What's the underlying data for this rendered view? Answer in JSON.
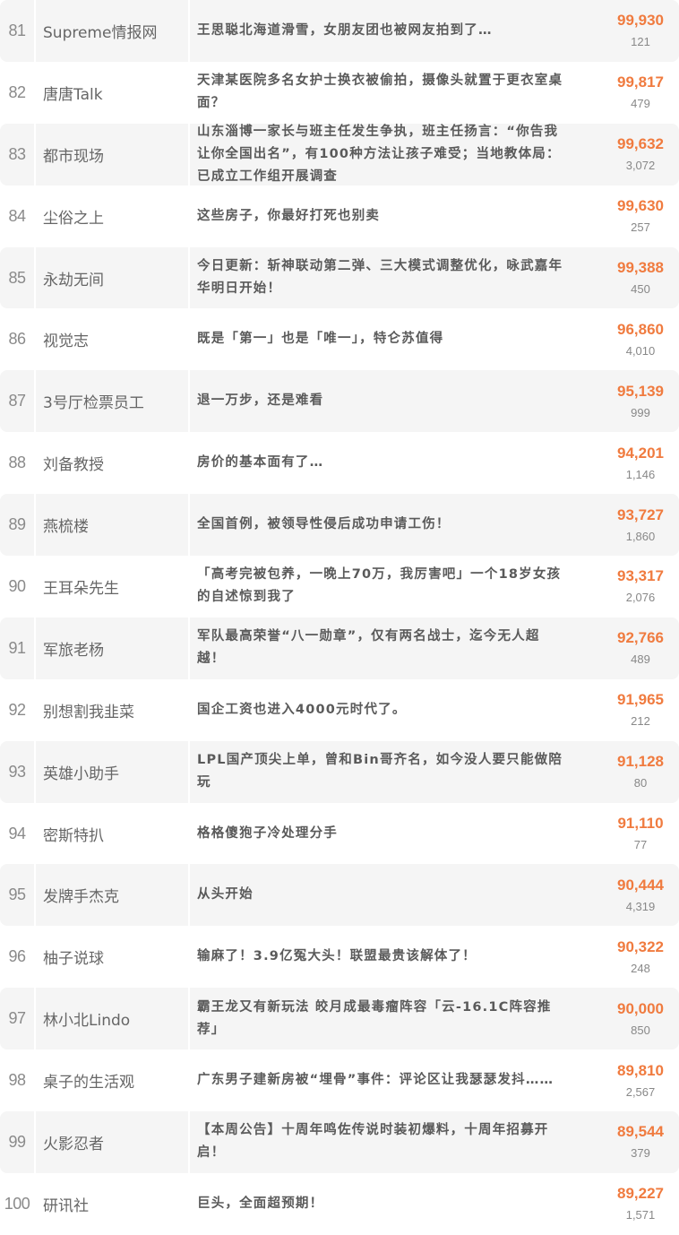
{
  "colors": {
    "accent": "#f07b3f",
    "row_alt_bg": "#f5f5f5"
  },
  "rows": [
    {
      "rank": "81",
      "name": "Supreme情报网",
      "title": "王思聪北海道滑雪，女朋友团也被网友拍到了…",
      "score": "99,930",
      "count": "121"
    },
    {
      "rank": "82",
      "name": "唐唐Talk",
      "title": "天津某医院多名女护士换衣被偷拍，摄像头就置于更衣室桌面？",
      "score": "99,817",
      "count": "479"
    },
    {
      "rank": "83",
      "name": "都市现场",
      "title": "山东淄博一家长与班主任发生争执，班主任扬言：“你告我让你全国出名”，有100种方法让孩子难受；当地教体局：已成立工作组开展调查",
      "score": "99,632",
      "count": "3,072"
    },
    {
      "rank": "84",
      "name": "尘俗之上",
      "title": "这些房子，你最好打死也别卖",
      "score": "99,630",
      "count": "257"
    },
    {
      "rank": "85",
      "name": "永劫无间",
      "title": "今日更新：斩神联动第二弹、三大模式调整优化，咏武嘉年华明日开始！",
      "score": "99,388",
      "count": "450"
    },
    {
      "rank": "86",
      "name": "视觉志",
      "title": "既是「第一」也是「唯一」，特仑苏值得",
      "score": "96,860",
      "count": "4,010"
    },
    {
      "rank": "87",
      "name": "3号厅检票员工",
      "title": "退一万步，还是难看",
      "score": "95,139",
      "count": "999"
    },
    {
      "rank": "88",
      "name": "刘备教授",
      "title": "房价的基本面有了…",
      "score": "94,201",
      "count": "1,146"
    },
    {
      "rank": "89",
      "name": "燕梳楼",
      "title": "全国首例，被领导性侵后成功申请工伤！",
      "score": "93,727",
      "count": "1,860"
    },
    {
      "rank": "90",
      "name": "王耳朵先生",
      "title": "「高考完被包养，一晚上70万，我厉害吧」一个18岁女孩的自述惊到我了",
      "score": "93,317",
      "count": "2,076"
    },
    {
      "rank": "91",
      "name": "军旅老杨",
      "title": "军队最高荣誉“八一勋章”，仅有两名战士，迄今无人超越！",
      "score": "92,766",
      "count": "489"
    },
    {
      "rank": "92",
      "name": "别想割我韭菜",
      "title": "国企工资也进入4000元时代了。",
      "score": "91,965",
      "count": "212"
    },
    {
      "rank": "93",
      "name": "英雄小助手",
      "title": "LPL国产顶尖上单，曾和Bin哥齐名，如今没人要只能做陪玩",
      "score": "91,128",
      "count": "80"
    },
    {
      "rank": "94",
      "name": "密斯特扒",
      "title": "格格傻狍子冷处理分手",
      "score": "91,110",
      "count": "77"
    },
    {
      "rank": "95",
      "name": "发牌手杰克",
      "title": "从头开始",
      "score": "90,444",
      "count": "4,319"
    },
    {
      "rank": "96",
      "name": "柚子说球",
      "title": "输麻了！3.9亿冤大头！联盟最贵该解体了！",
      "score": "90,322",
      "count": "248"
    },
    {
      "rank": "97",
      "name": "林小北Lindo",
      "title": "霸王龙又有新玩法 皎月成最毒瘤阵容「云-16.1C阵容推荐」",
      "score": "90,000",
      "count": "850"
    },
    {
      "rank": "98",
      "name": "桌子的生活观",
      "title": "广东男子建新房被“埋骨”事件：评论区让我瑟瑟发抖……",
      "score": "89,810",
      "count": "2,567"
    },
    {
      "rank": "99",
      "name": "火影忍者",
      "title": "【本周公告】十周年鸣佐传说时装初爆料，十周年招募开启！",
      "score": "89,544",
      "count": "379"
    },
    {
      "rank": "100",
      "name": "研讯社",
      "title": "巨头，全面超预期！",
      "score": "89,227",
      "count": "1,571"
    }
  ]
}
